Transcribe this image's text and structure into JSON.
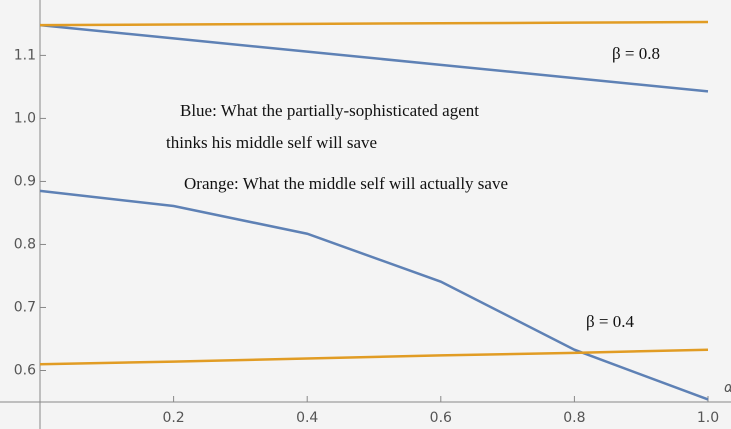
{
  "chart_data": {
    "type": "line",
    "x": [
      0,
      0.2,
      0.4,
      0.6,
      0.8,
      1.0
    ],
    "xlabel": "α",
    "series": [
      {
        "name": "β = 0.8 blue",
        "color": "#5e81b5",
        "values": [
          1.148,
          1.127,
          1.106,
          1.085,
          1.064,
          1.043
        ]
      },
      {
        "name": "β = 0.8 orange",
        "color": "#e19c24",
        "values": [
          1.148,
          1.149,
          1.15,
          1.151,
          1.152,
          1.153
        ]
      },
      {
        "name": "β = 0.4 blue",
        "color": "#5e81b5",
        "values": [
          0.885,
          0.861,
          0.817,
          0.741,
          0.633,
          0.554
        ]
      },
      {
        "name": "β = 0.4 orange",
        "color": "#e19c24",
        "values": [
          0.61,
          0.614,
          0.619,
          0.624,
          0.628,
          0.633
        ]
      }
    ],
    "annotations": [
      "β = 0.8",
      "β = 0.4",
      "Blue: What the partially-sophisticated agent",
      "thinks his middle self will save",
      "Orange: What the middle self will actually save"
    ],
    "xlim": [
      0,
      1.0
    ],
    "ylim": [
      0.55,
      1.18
    ],
    "xticks": [
      {
        "value": 0.2,
        "label": "0.2"
      },
      {
        "value": 0.4,
        "label": "0.4"
      },
      {
        "value": 0.6,
        "label": "0.6"
      },
      {
        "value": 0.8,
        "label": "0.8"
      },
      {
        "value": 1.0,
        "label": "1.0"
      }
    ],
    "yticks": [
      {
        "value": 0.6,
        "label": "0.6"
      },
      {
        "value": 0.7,
        "label": "0.7"
      },
      {
        "value": 0.8,
        "label": "0.8"
      },
      {
        "value": 0.9,
        "label": "0.9"
      },
      {
        "value": 1.0,
        "label": "1.0"
      },
      {
        "value": 1.1,
        "label": "1.1"
      }
    ]
  }
}
